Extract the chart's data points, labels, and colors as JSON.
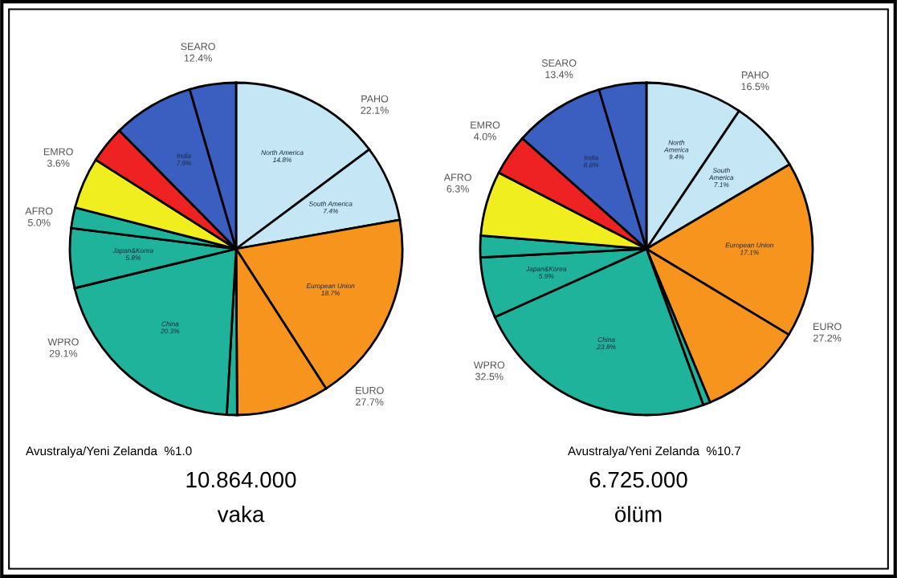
{
  "chart_data": [
    {
      "type": "pie",
      "categories": [
        "North America",
        "South America",
        "European Union",
        null,
        null,
        "China",
        "Japan&Korea",
        null,
        null,
        null,
        "India",
        null
      ],
      "values": [
        14.8,
        7.4,
        18.7,
        9.0,
        1.0,
        20.3,
        5.8,
        2.0,
        5.0,
        3.6,
        7.9,
        4.5
      ],
      "value_labels": [
        "14.8%",
        "7.4%",
        "18.7%",
        null,
        null,
        "20.3%",
        "5.8%",
        null,
        null,
        null,
        "7.9%",
        null
      ],
      "colors": [
        "#c5e6f4",
        "#c5e6f4",
        "#f7941d",
        "#f7941d",
        "#1fb39b",
        "#1fb39b",
        "#1fb39b",
        "#1fb39b",
        "#f0ee1e",
        "#ee2222",
        "#3a5fc0",
        "#3a5fc0"
      ],
      "annotations": [
        "SEARO\n12.4%",
        "PAHO\n22.1%",
        "EMRO\n3.6%",
        "AFRO\n5.0%",
        "WPRO\n29.1%",
        "EURO\n27.7%",
        "Avustralya/Yeni Zelanda  %1.0",
        "10.864.000",
        "vaka"
      ]
    },
    {
      "type": "pie",
      "categories": [
        "North\nAmerica",
        "South\nAmerica",
        "European Union",
        null,
        null,
        "China",
        "Japan&Korea",
        null,
        null,
        null,
        "India",
        null
      ],
      "values": [
        9.4,
        7.1,
        17.1,
        10.1,
        0.7,
        23.8,
        5.9,
        2.1,
        6.3,
        4.0,
        8.8,
        4.6
      ],
      "value_labels": [
        "9.4%",
        "7.1%",
        "17.1%",
        null,
        null,
        "23.8%",
        "5.9%",
        null,
        null,
        null,
        "8.8%",
        null
      ],
      "colors": [
        "#c5e6f4",
        "#c5e6f4",
        "#f7941d",
        "#f7941d",
        "#1fb39b",
        "#1fb39b",
        "#1fb39b",
        "#1fb39b",
        "#f0ee1e",
        "#ee2222",
        "#3a5fc0",
        "#3a5fc0"
      ],
      "annotations": [
        "SEARO\n13.4%",
        "PAHO\n16.5%",
        "EMRO\n4.0%",
        "AFRO\n6.3%",
        "WPRO\n32.5%",
        "EURO\n27.2%",
        "Avustralya/Yeni Zelanda  %10.7",
        "6.725.000",
        "ölüm"
      ]
    }
  ]
}
